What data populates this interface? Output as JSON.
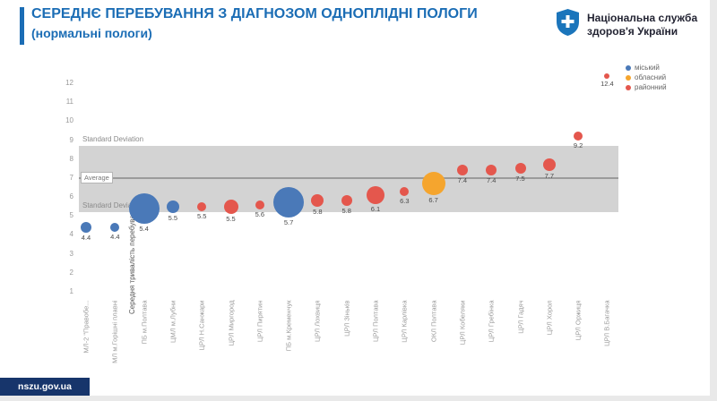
{
  "page": {
    "site": "nszu.gov.ua"
  },
  "header": {
    "title_line1": "СЕРЕДНЄ ПЕРЕБУВАННЯ З ДІАГНОЗОМ ОДНОПЛІДНІ ПОЛОГИ",
    "title_line2": "(нормальні пологи)",
    "org_name_line1": "Національна служба",
    "org_name_line2": "здоров'я України",
    "accent_color": "#1b6db5"
  },
  "chart_data": {
    "type": "scatter",
    "title": "Середнє перебування з діагнозом одноплідні пологи (нормальні пологи)",
    "ylabel": "Середня тривалість перебування",
    "ylim": [
      1,
      12
    ],
    "yticks": [
      1,
      2,
      3,
      4,
      5,
      6,
      7,
      8,
      9,
      10,
      11,
      12
    ],
    "grid": false,
    "legend_position": "top-right",
    "annotations": {
      "std_upper_label": "Standard Deviation",
      "std_lower_label": "Standard Deviation",
      "average_label": "Average",
      "average_value": 7.0,
      "std_band": [
        5.2,
        8.7
      ]
    },
    "legend": [
      {
        "label": "міський",
        "color": "#4a79b8"
      },
      {
        "label": "обласний",
        "color": "#f5a52e"
      },
      {
        "label": "районний",
        "color": "#e4574d"
      }
    ],
    "points": [
      {
        "name": "МЛ-2 \"Правобе...",
        "value": 4.4,
        "category": "міський",
        "r": 6
      },
      {
        "name": "МЛ м.Горішні плавні",
        "value": 4.4,
        "category": "міський",
        "r": 5
      },
      {
        "name": "ПБ м.Полтава",
        "value": 5.4,
        "category": "міський",
        "r": 17
      },
      {
        "name": "ЦМЛ м.Лубни",
        "value": 5.5,
        "category": "міський",
        "r": 7
      },
      {
        "name": "ЦРЛ Н.Санжари",
        "value": 5.5,
        "category": "районний",
        "r": 5
      },
      {
        "name": "ЦРЛ Миргород",
        "value": 5.5,
        "category": "районний",
        "r": 8
      },
      {
        "name": "ЦРЛ Пирятин",
        "value": 5.6,
        "category": "районний",
        "r": 5
      },
      {
        "name": "ПБ м.Кременчук",
        "value": 5.7,
        "category": "міський",
        "r": 17
      },
      {
        "name": "ЦРЛ Лохвиця",
        "value": 5.8,
        "category": "районний",
        "r": 7
      },
      {
        "name": "ЦРЛ Зіньків",
        "value": 5.8,
        "category": "районний",
        "r": 6
      },
      {
        "name": "ЦРЛ Полтава",
        "value": 6.1,
        "category": "районний",
        "r": 10
      },
      {
        "name": "ЦРЛ Карлівка",
        "value": 6.3,
        "category": "районний",
        "r": 5
      },
      {
        "name": "ОКЛ Полтава",
        "value": 6.7,
        "category": "обласний",
        "r": 13
      },
      {
        "name": "ЦРЛ Кобеляки",
        "value": 7.4,
        "category": "районний",
        "r": 6
      },
      {
        "name": "ЦРЛ Гребінка",
        "value": 7.4,
        "category": "районний",
        "r": 6
      },
      {
        "name": "ЦРЛ Гадяч",
        "value": 7.5,
        "category": "районний",
        "r": 6
      },
      {
        "name": "ЦРЛ Хорол",
        "value": 7.7,
        "category": "районний",
        "r": 7
      },
      {
        "name": "ЦРЛ Оржиця",
        "value": 9.2,
        "category": "районний",
        "r": 5
      },
      {
        "name": "ЦРЛ В.Багачка",
        "value": 12.4,
        "category": "районний",
        "r": 3
      }
    ]
  }
}
